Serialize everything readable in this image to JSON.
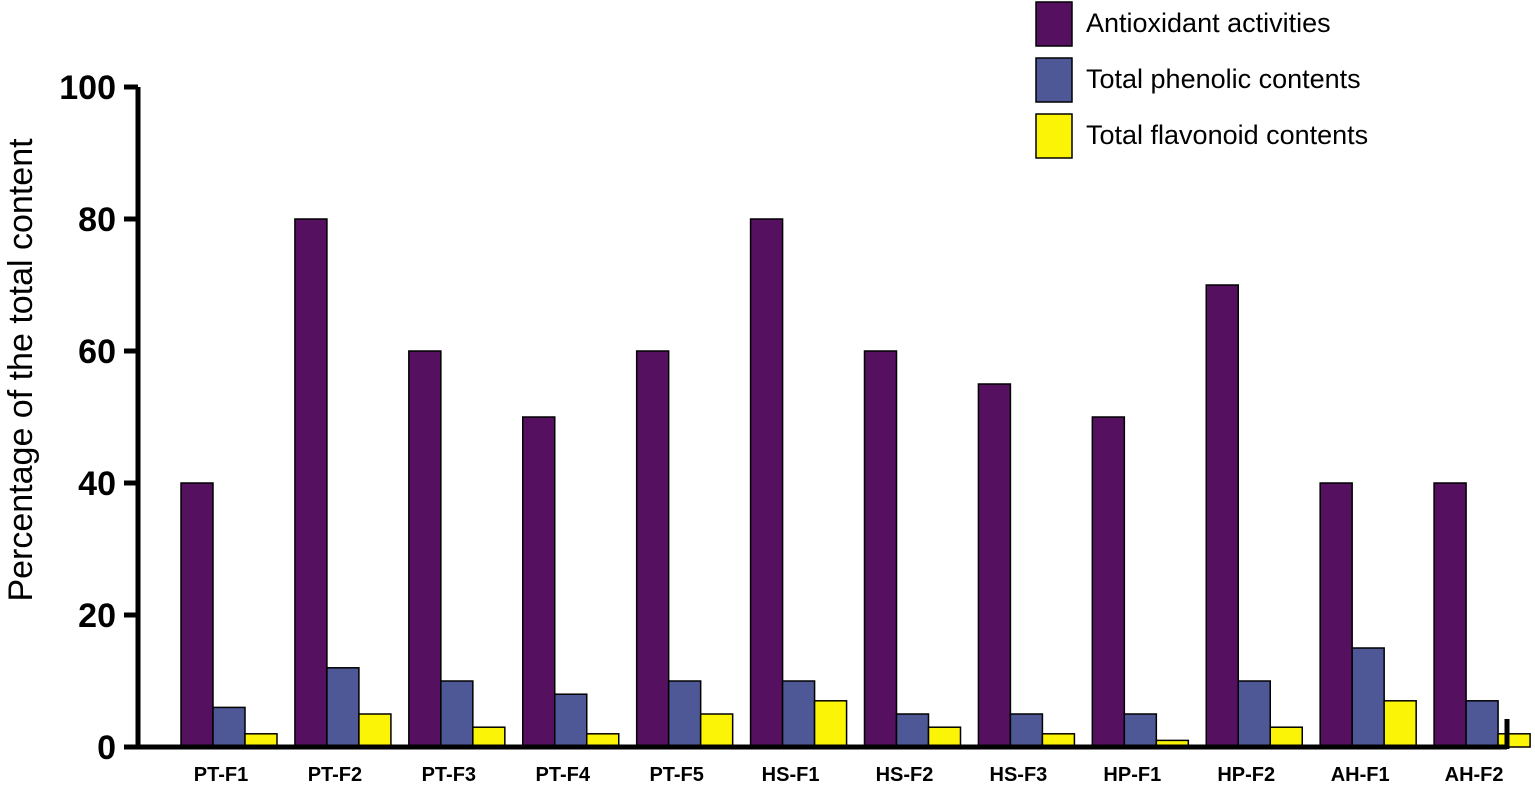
{
  "chart_data": {
    "type": "bar",
    "title": "",
    "xlabel": "",
    "ylabel": "Percentage of the total content",
    "ylim": [
      0,
      100
    ],
    "yticks": [
      0,
      20,
      40,
      60,
      80,
      100
    ],
    "grid": false,
    "legend_position": "top-right",
    "categories": [
      "PT-F1",
      "PT-F2",
      "PT-F3",
      "PT-F4",
      "PT-F5",
      "HS-F1",
      "HS-F2",
      "HS-F3",
      "HP-F1",
      "HP-F2",
      "AH-F1",
      "AH-F2"
    ],
    "series": [
      {
        "name": "Antioxidant activities",
        "color": "#551160",
        "values": [
          40,
          80,
          60,
          50,
          60,
          80,
          60,
          55,
          50,
          70,
          40,
          40
        ]
      },
      {
        "name": "Total phenolic contents",
        "color": "#4f5896",
        "values": [
          6,
          12,
          10,
          8,
          10,
          10,
          5,
          5,
          5,
          10,
          15,
          7
        ]
      },
      {
        "name": "Total flavonoid contents",
        "color": "#fcf406",
        "values": [
          2,
          5,
          3,
          2,
          5,
          7,
          3,
          2,
          1,
          3,
          7,
          2
        ]
      }
    ]
  }
}
